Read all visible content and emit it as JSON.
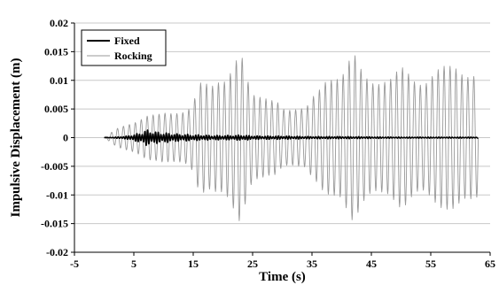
{
  "chart_data": {
    "type": "line",
    "xlabel": "Time  (s)",
    "ylabel": "Impulsive  Displacement  (m)",
    "xlim": [
      -5,
      65
    ],
    "ylim": [
      -0.02,
      0.02
    ],
    "x_ticks": [
      "-5",
      "5",
      "15",
      "25",
      "35",
      "45",
      "55",
      "65"
    ],
    "y_ticks": [
      "0.02",
      "0.015",
      "0.01",
      "0.005",
      "0",
      "-0.005",
      "-0.01",
      "-0.015",
      "-0.02"
    ],
    "grid": "horizontal",
    "legend_position": "top-left",
    "series": [
      {
        "name": "Fixed",
        "color": "#000000",
        "x": [
          0,
          2,
          4,
          5,
          6,
          7,
          8,
          9,
          10,
          11,
          12,
          13,
          14,
          15,
          16,
          18,
          20,
          22,
          23,
          24,
          26,
          28,
          30,
          35,
          40,
          45,
          50,
          55,
          60,
          63
        ],
        "amplitude": [
          0.0,
          0.0001,
          0.0003,
          0.0006,
          0.0008,
          0.0014,
          0.0012,
          0.001,
          0.0009,
          0.0008,
          0.0007,
          0.0006,
          0.0006,
          0.0005,
          0.0005,
          0.0004,
          0.0004,
          0.0004,
          0.0005,
          0.0004,
          0.0003,
          0.0003,
          0.0003,
          0.0002,
          0.0002,
          0.00015,
          0.0001,
          0.0001,
          0.0001,
          0.0001
        ],
        "period": 0.45
      },
      {
        "name": "Rocking",
        "color": "#999999",
        "x": [
          0,
          2,
          3,
          5,
          7,
          9,
          10,
          12,
          14,
          15,
          16,
          17,
          18,
          19,
          20,
          21,
          22,
          23,
          24,
          25,
          26,
          27,
          28,
          29,
          30,
          31,
          32,
          33,
          34,
          35,
          36,
          37,
          38,
          39,
          40,
          41,
          42,
          43,
          44,
          45,
          46,
          47,
          48,
          49,
          50,
          51,
          52,
          53,
          54,
          55,
          56,
          57,
          58,
          59,
          60,
          61,
          62,
          63
        ],
        "amplitude": [
          0.0,
          0.0015,
          0.002,
          0.003,
          0.004,
          0.004,
          0.0045,
          0.005,
          0.005,
          0.006,
          0.0095,
          0.01,
          0.01,
          0.0115,
          0.011,
          0.0115,
          0.013,
          0.015,
          0.011,
          0.0085,
          0.0085,
          0.008,
          0.007,
          0.0065,
          0.005,
          0.005,
          0.0055,
          0.006,
          0.006,
          0.0075,
          0.008,
          0.0095,
          0.0105,
          0.0115,
          0.0125,
          0.015,
          0.016,
          0.0125,
          0.0105,
          0.01,
          0.0105,
          0.0115,
          0.0115,
          0.012,
          0.0125,
          0.0115,
          0.0105,
          0.0105,
          0.011,
          0.012,
          0.0125,
          0.0125,
          0.0125,
          0.013,
          0.0128,
          0.0125,
          0.0125,
          0.011
        ],
        "period": 1.0
      }
    ]
  }
}
